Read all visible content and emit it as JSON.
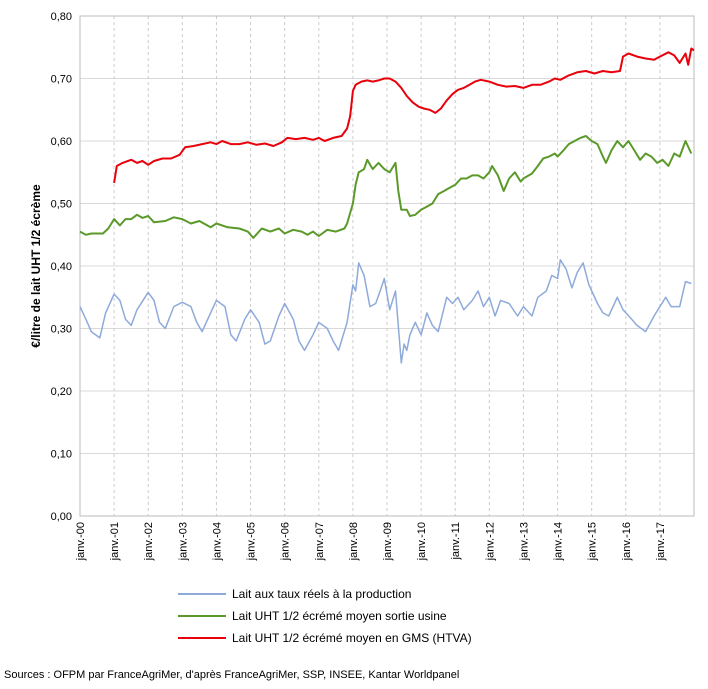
{
  "chart_data": {
    "type": "line",
    "ylabel": "€/litre de lait UHT 1/2 écrème",
    "ylim": [
      0,
      0.8
    ],
    "yticks": [
      "0,00",
      "0,10",
      "0,20",
      "0,30",
      "0,40",
      "0,50",
      "0,60",
      "0,70",
      "0,80"
    ],
    "xrange": [
      2000.0,
      2018.0
    ],
    "xticks": [
      "janv.-00",
      "janv.-01",
      "janv.-02",
      "janv.-03",
      "janv.-04",
      "janv.-05",
      "janv.-06",
      "janv.-07",
      "janv.-08",
      "janv.-09",
      "janv.-10",
      "janv.-11",
      "janv.-12",
      "janv.-13",
      "janv.-14",
      "janv.-15",
      "janv.-16",
      "janv.-17"
    ],
    "grid": true,
    "legend_position": "bottom",
    "series": [
      {
        "name": "Lait aux taux réels à la production",
        "color": "#8eaadb",
        "points": [
          [
            2000.0,
            0.335
          ],
          [
            2000.17,
            0.315
          ],
          [
            2000.33,
            0.295
          ],
          [
            2000.58,
            0.285
          ],
          [
            2000.75,
            0.325
          ],
          [
            2001.0,
            0.355
          ],
          [
            2001.17,
            0.345
          ],
          [
            2001.33,
            0.315
          ],
          [
            2001.5,
            0.305
          ],
          [
            2001.67,
            0.33
          ],
          [
            2002.0,
            0.358
          ],
          [
            2002.17,
            0.345
          ],
          [
            2002.33,
            0.31
          ],
          [
            2002.5,
            0.3
          ],
          [
            2002.75,
            0.335
          ],
          [
            2003.0,
            0.342
          ],
          [
            2003.25,
            0.335
          ],
          [
            2003.42,
            0.31
          ],
          [
            2003.58,
            0.295
          ],
          [
            2003.83,
            0.325
          ],
          [
            2004.0,
            0.345
          ],
          [
            2004.25,
            0.335
          ],
          [
            2004.42,
            0.29
          ],
          [
            2004.58,
            0.28
          ],
          [
            2004.83,
            0.315
          ],
          [
            2005.0,
            0.33
          ],
          [
            2005.25,
            0.31
          ],
          [
            2005.42,
            0.275
          ],
          [
            2005.58,
            0.28
          ],
          [
            2005.83,
            0.32
          ],
          [
            2006.0,
            0.34
          ],
          [
            2006.25,
            0.315
          ],
          [
            2006.42,
            0.28
          ],
          [
            2006.58,
            0.265
          ],
          [
            2006.83,
            0.29
          ],
          [
            2007.0,
            0.31
          ],
          [
            2007.25,
            0.3
          ],
          [
            2007.42,
            0.28
          ],
          [
            2007.58,
            0.265
          ],
          [
            2007.83,
            0.31
          ],
          [
            2008.0,
            0.37
          ],
          [
            2008.08,
            0.36
          ],
          [
            2008.17,
            0.405
          ],
          [
            2008.33,
            0.385
          ],
          [
            2008.5,
            0.335
          ],
          [
            2008.67,
            0.34
          ],
          [
            2008.83,
            0.365
          ],
          [
            2008.92,
            0.38
          ],
          [
            2009.08,
            0.33
          ],
          [
            2009.25,
            0.36
          ],
          [
            2009.42,
            0.245
          ],
          [
            2009.5,
            0.275
          ],
          [
            2009.58,
            0.265
          ],
          [
            2009.67,
            0.29
          ],
          [
            2009.83,
            0.31
          ],
          [
            2010.0,
            0.29
          ],
          [
            2010.17,
            0.325
          ],
          [
            2010.33,
            0.305
          ],
          [
            2010.5,
            0.295
          ],
          [
            2010.75,
            0.35
          ],
          [
            2010.92,
            0.34
          ],
          [
            2011.08,
            0.35
          ],
          [
            2011.25,
            0.33
          ],
          [
            2011.5,
            0.345
          ],
          [
            2011.67,
            0.36
          ],
          [
            2011.83,
            0.335
          ],
          [
            2012.0,
            0.35
          ],
          [
            2012.17,
            0.32
          ],
          [
            2012.33,
            0.345
          ],
          [
            2012.58,
            0.34
          ],
          [
            2012.83,
            0.32
          ],
          [
            2013.0,
            0.335
          ],
          [
            2013.25,
            0.32
          ],
          [
            2013.42,
            0.35
          ],
          [
            2013.67,
            0.36
          ],
          [
            2013.83,
            0.385
          ],
          [
            2014.0,
            0.38
          ],
          [
            2014.08,
            0.41
          ],
          [
            2014.25,
            0.395
          ],
          [
            2014.42,
            0.365
          ],
          [
            2014.58,
            0.39
          ],
          [
            2014.75,
            0.405
          ],
          [
            2014.92,
            0.37
          ],
          [
            2015.17,
            0.34
          ],
          [
            2015.33,
            0.325
          ],
          [
            2015.5,
            0.32
          ],
          [
            2015.75,
            0.35
          ],
          [
            2015.92,
            0.33
          ],
          [
            2016.17,
            0.315
          ],
          [
            2016.33,
            0.305
          ],
          [
            2016.58,
            0.295
          ],
          [
            2016.83,
            0.32
          ],
          [
            2017.0,
            0.335
          ],
          [
            2017.17,
            0.35
          ],
          [
            2017.33,
            0.335
          ],
          [
            2017.58,
            0.335
          ],
          [
            2017.75,
            0.375
          ],
          [
            2017.92,
            0.372
          ]
        ]
      },
      {
        "name": "Lait UHT 1/2 écrémé moyen sortie usine",
        "color": "#5b9a2a",
        "points": [
          [
            2000.0,
            0.455
          ],
          [
            2000.17,
            0.45
          ],
          [
            2000.33,
            0.452
          ],
          [
            2000.67,
            0.452
          ],
          [
            2000.83,
            0.46
          ],
          [
            2001.0,
            0.475
          ],
          [
            2001.17,
            0.465
          ],
          [
            2001.33,
            0.475
          ],
          [
            2001.5,
            0.475
          ],
          [
            2001.67,
            0.482
          ],
          [
            2001.83,
            0.477
          ],
          [
            2002.0,
            0.48
          ],
          [
            2002.17,
            0.47
          ],
          [
            2002.5,
            0.472
          ],
          [
            2002.75,
            0.478
          ],
          [
            2003.0,
            0.475
          ],
          [
            2003.25,
            0.468
          ],
          [
            2003.5,
            0.472
          ],
          [
            2003.83,
            0.462
          ],
          [
            2004.0,
            0.468
          ],
          [
            2004.33,
            0.462
          ],
          [
            2004.67,
            0.46
          ],
          [
            2004.92,
            0.455
          ],
          [
            2005.08,
            0.445
          ],
          [
            2005.33,
            0.46
          ],
          [
            2005.58,
            0.455
          ],
          [
            2005.83,
            0.46
          ],
          [
            2006.0,
            0.452
          ],
          [
            2006.25,
            0.458
          ],
          [
            2006.5,
            0.455
          ],
          [
            2006.67,
            0.45
          ],
          [
            2006.83,
            0.455
          ],
          [
            2007.0,
            0.448
          ],
          [
            2007.25,
            0.458
          ],
          [
            2007.5,
            0.455
          ],
          [
            2007.75,
            0.46
          ],
          [
            2007.83,
            0.468
          ],
          [
            2008.0,
            0.5
          ],
          [
            2008.08,
            0.53
          ],
          [
            2008.17,
            0.55
          ],
          [
            2008.33,
            0.555
          ],
          [
            2008.42,
            0.57
          ],
          [
            2008.58,
            0.555
          ],
          [
            2008.75,
            0.565
          ],
          [
            2008.92,
            0.555
          ],
          [
            2009.08,
            0.55
          ],
          [
            2009.25,
            0.565
          ],
          [
            2009.33,
            0.52
          ],
          [
            2009.42,
            0.49
          ],
          [
            2009.58,
            0.49
          ],
          [
            2009.67,
            0.48
          ],
          [
            2009.83,
            0.482
          ],
          [
            2010.0,
            0.49
          ],
          [
            2010.17,
            0.495
          ],
          [
            2010.33,
            0.5
          ],
          [
            2010.5,
            0.515
          ],
          [
            2010.67,
            0.52
          ],
          [
            2010.83,
            0.525
          ],
          [
            2011.0,
            0.53
          ],
          [
            2011.17,
            0.54
          ],
          [
            2011.33,
            0.54
          ],
          [
            2011.5,
            0.545
          ],
          [
            2011.67,
            0.545
          ],
          [
            2011.83,
            0.54
          ],
          [
            2012.0,
            0.55
          ],
          [
            2012.08,
            0.56
          ],
          [
            2012.25,
            0.545
          ],
          [
            2012.42,
            0.52
          ],
          [
            2012.58,
            0.54
          ],
          [
            2012.75,
            0.55
          ],
          [
            2012.92,
            0.535
          ],
          [
            2013.0,
            0.54
          ],
          [
            2013.25,
            0.548
          ],
          [
            2013.42,
            0.56
          ],
          [
            2013.58,
            0.572
          ],
          [
            2013.75,
            0.575
          ],
          [
            2013.92,
            0.58
          ],
          [
            2014.0,
            0.575
          ],
          [
            2014.17,
            0.585
          ],
          [
            2014.33,
            0.595
          ],
          [
            2014.5,
            0.6
          ],
          [
            2014.67,
            0.605
          ],
          [
            2014.83,
            0.608
          ],
          [
            2015.0,
            0.6
          ],
          [
            2015.17,
            0.595
          ],
          [
            2015.33,
            0.575
          ],
          [
            2015.42,
            0.565
          ],
          [
            2015.58,
            0.585
          ],
          [
            2015.75,
            0.6
          ],
          [
            2015.92,
            0.59
          ],
          [
            2016.08,
            0.6
          ],
          [
            2016.25,
            0.585
          ],
          [
            2016.42,
            0.57
          ],
          [
            2016.58,
            0.58
          ],
          [
            2016.75,
            0.575
          ],
          [
            2016.92,
            0.565
          ],
          [
            2017.08,
            0.57
          ],
          [
            2017.25,
            0.56
          ],
          [
            2017.42,
            0.58
          ],
          [
            2017.58,
            0.575
          ],
          [
            2017.75,
            0.6
          ],
          [
            2017.92,
            0.58
          ]
        ]
      },
      {
        "name": "Lait UHT 1/2 écrémé moyen en GMS (HTVA)",
        "color": "#e8000b",
        "points": [
          [
            2001.0,
            0.533
          ],
          [
            2001.08,
            0.56
          ],
          [
            2001.25,
            0.565
          ],
          [
            2001.5,
            0.57
          ],
          [
            2001.67,
            0.565
          ],
          [
            2001.83,
            0.568
          ],
          [
            2002.0,
            0.562
          ],
          [
            2002.17,
            0.568
          ],
          [
            2002.42,
            0.572
          ],
          [
            2002.67,
            0.572
          ],
          [
            2002.92,
            0.578
          ],
          [
            2003.08,
            0.59
          ],
          [
            2003.33,
            0.592
          ],
          [
            2003.58,
            0.595
          ],
          [
            2003.83,
            0.598
          ],
          [
            2004.0,
            0.595
          ],
          [
            2004.17,
            0.6
          ],
          [
            2004.42,
            0.595
          ],
          [
            2004.67,
            0.595
          ],
          [
            2004.92,
            0.598
          ],
          [
            2005.17,
            0.594
          ],
          [
            2005.42,
            0.596
          ],
          [
            2005.67,
            0.592
          ],
          [
            2005.92,
            0.598
          ],
          [
            2006.08,
            0.605
          ],
          [
            2006.33,
            0.603
          ],
          [
            2006.58,
            0.605
          ],
          [
            2006.83,
            0.602
          ],
          [
            2007.0,
            0.605
          ],
          [
            2007.17,
            0.6
          ],
          [
            2007.42,
            0.605
          ],
          [
            2007.67,
            0.608
          ],
          [
            2007.83,
            0.62
          ],
          [
            2007.92,
            0.64
          ],
          [
            2008.0,
            0.68
          ],
          [
            2008.08,
            0.69
          ],
          [
            2008.25,
            0.695
          ],
          [
            2008.42,
            0.697
          ],
          [
            2008.58,
            0.695
          ],
          [
            2008.75,
            0.697
          ],
          [
            2008.92,
            0.7
          ],
          [
            2009.08,
            0.7
          ],
          [
            2009.25,
            0.695
          ],
          [
            2009.42,
            0.685
          ],
          [
            2009.58,
            0.672
          ],
          [
            2009.75,
            0.662
          ],
          [
            2009.92,
            0.655
          ],
          [
            2010.08,
            0.652
          ],
          [
            2010.25,
            0.65
          ],
          [
            2010.42,
            0.645
          ],
          [
            2010.58,
            0.652
          ],
          [
            2010.75,
            0.665
          ],
          [
            2010.92,
            0.675
          ],
          [
            2011.08,
            0.682
          ],
          [
            2011.25,
            0.685
          ],
          [
            2011.42,
            0.69
          ],
          [
            2011.58,
            0.695
          ],
          [
            2011.75,
            0.698
          ],
          [
            2012.0,
            0.695
          ],
          [
            2012.25,
            0.69
          ],
          [
            2012.5,
            0.687
          ],
          [
            2012.75,
            0.688
          ],
          [
            2013.0,
            0.685
          ],
          [
            2013.25,
            0.69
          ],
          [
            2013.5,
            0.69
          ],
          [
            2013.75,
            0.695
          ],
          [
            2013.92,
            0.7
          ],
          [
            2014.08,
            0.698
          ],
          [
            2014.33,
            0.705
          ],
          [
            2014.58,
            0.71
          ],
          [
            2014.83,
            0.712
          ],
          [
            2015.08,
            0.708
          ],
          [
            2015.33,
            0.712
          ],
          [
            2015.58,
            0.71
          ],
          [
            2015.83,
            0.712
          ],
          [
            2015.92,
            0.735
          ],
          [
            2016.08,
            0.74
          ],
          [
            2016.33,
            0.735
          ],
          [
            2016.58,
            0.732
          ],
          [
            2016.83,
            0.73
          ],
          [
            2017.0,
            0.735
          ],
          [
            2017.25,
            0.742
          ],
          [
            2017.42,
            0.737
          ],
          [
            2017.58,
            0.725
          ],
          [
            2017.75,
            0.74
          ],
          [
            2017.83,
            0.722
          ],
          [
            2017.92,
            0.748
          ],
          [
            2018.0,
            0.745
          ]
        ]
      }
    ]
  },
  "source_text": "Sources : OFPM par FranceAgriMer, d'après FranceAgriMer, SSP, INSEE, Kantar Worldpanel"
}
